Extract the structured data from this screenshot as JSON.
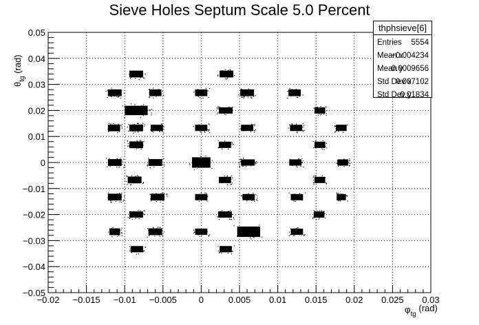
{
  "chart_data": {
    "type": "scatter",
    "title": "Sieve Holes Septum Scale 5.0 Percent",
    "xlabel": {
      "main": "φ",
      "sub": "tg",
      "unit": " (rad)"
    },
    "ylabel": {
      "main": "θ",
      "sub": "tg",
      "unit": " (rad)"
    },
    "xlim": [
      -0.02,
      0.03
    ],
    "ylim": [
      -0.05,
      0.05
    ],
    "x_ticks": [
      "−0.02",
      "−0.015",
      "−0.01",
      "−0.005",
      "0",
      "0.005",
      "0.01",
      "0.015",
      "0.02",
      "0.025",
      "0.03"
    ],
    "x_tick_values": [
      -0.02,
      -0.015,
      -0.01,
      -0.005,
      0,
      0.005,
      0.01,
      0.015,
      0.02,
      0.025,
      0.03
    ],
    "y_ticks": [
      "−0.05",
      "−0.04",
      "−0.03",
      "−0.02",
      "−0.01",
      "0",
      "0.01",
      "0.02",
      "0.03",
      "0.04",
      "0.05"
    ],
    "y_tick_values": [
      -0.05,
      -0.04,
      -0.03,
      -0.02,
      -0.01,
      0,
      0.01,
      0.02,
      0.03,
      0.04,
      0.05
    ],
    "grid": true,
    "grid_style": "dotted",
    "stats_box": {
      "name": "thphsieve[6]",
      "entries": [
        {
          "label": "Entries",
          "value": "5554"
        },
        {
          "label": "Mean x",
          "value": "−0.004234"
        },
        {
          "label": "Mean y",
          "value": "0.0009656"
        },
        {
          "label": "Std Dev x",
          "value": "0.007102"
        },
        {
          "label": "Std Dev y",
          "value": "0.01834"
        }
      ]
    },
    "clusters": [
      {
        "x": -0.0085,
        "y": 0.034,
        "w": 0.0009,
        "h": 0.0013
      },
      {
        "x": 0.0033,
        "y": 0.034,
        "w": 0.0009,
        "h": 0.0013
      },
      {
        "x": -0.0113,
        "y": 0.0268,
        "w": 0.0009,
        "h": 0.0013
      },
      {
        "x": -0.006,
        "y": 0.0268,
        "w": 0.0008,
        "h": 0.0013
      },
      {
        "x": 0.0,
        "y": 0.0268,
        "w": 0.0008,
        "h": 0.0013
      },
      {
        "x": 0.006,
        "y": 0.0268,
        "w": 0.0009,
        "h": 0.0013
      },
      {
        "x": 0.0122,
        "y": 0.0268,
        "w": 0.0008,
        "h": 0.0013
      },
      {
        "x": -0.0085,
        "y": 0.02,
        "w": 0.0015,
        "h": 0.0018
      },
      {
        "x": 0.0032,
        "y": 0.02,
        "w": 0.0009,
        "h": 0.0012
      },
      {
        "x": 0.0155,
        "y": 0.02,
        "w": 0.0007,
        "h": 0.0012
      },
      {
        "x": -0.0114,
        "y": 0.0133,
        "w": 0.0008,
        "h": 0.0013
      },
      {
        "x": -0.0085,
        "y": 0.0133,
        "w": 0.0009,
        "h": 0.0013
      },
      {
        "x": -0.0058,
        "y": 0.0133,
        "w": 0.0008,
        "h": 0.0012
      },
      {
        "x": 0.0,
        "y": 0.0133,
        "w": 0.0008,
        "h": 0.0012
      },
      {
        "x": 0.006,
        "y": 0.0133,
        "w": 0.0008,
        "h": 0.0012
      },
      {
        "x": 0.0124,
        "y": 0.0133,
        "w": 0.0008,
        "h": 0.0012
      },
      {
        "x": 0.0183,
        "y": 0.0133,
        "w": 0.0007,
        "h": 0.0012
      },
      {
        "x": -0.0085,
        "y": 0.0068,
        "w": 0.0009,
        "h": 0.0013
      },
      {
        "x": 0.0031,
        "y": 0.0068,
        "w": 0.0008,
        "h": 0.0012
      },
      {
        "x": 0.0155,
        "y": 0.0068,
        "w": 0.0007,
        "h": 0.0012
      },
      {
        "x": -0.0113,
        "y": 0.0,
        "w": 0.0009,
        "h": 0.0013
      },
      {
        "x": -0.006,
        "y": 0.0,
        "w": 0.0009,
        "h": 0.0013
      },
      {
        "x": 0.0,
        "y": 0.0,
        "w": 0.0012,
        "h": 0.002
      },
      {
        "x": 0.0061,
        "y": 0.0,
        "w": 0.0009,
        "h": 0.0012
      },
      {
        "x": 0.0123,
        "y": 0.0,
        "w": 0.0008,
        "h": 0.0012
      },
      {
        "x": 0.0185,
        "y": 0.0,
        "w": 0.0007,
        "h": 0.0012
      },
      {
        "x": -0.0087,
        "y": -0.0067,
        "w": 0.0009,
        "h": 0.0013
      },
      {
        "x": 0.0031,
        "y": -0.0067,
        "w": 0.0008,
        "h": 0.0012
      },
      {
        "x": 0.0155,
        "y": -0.0067,
        "w": 0.0007,
        "h": 0.0012
      },
      {
        "x": -0.0113,
        "y": -0.0133,
        "w": 0.0009,
        "h": 0.0013
      },
      {
        "x": -0.0057,
        "y": -0.0133,
        "w": 0.0009,
        "h": 0.0013
      },
      {
        "x": 0.0,
        "y": -0.0133,
        "w": 0.0008,
        "h": 0.0012
      },
      {
        "x": 0.0062,
        "y": -0.0133,
        "w": 0.0008,
        "h": 0.0012
      },
      {
        "x": 0.0125,
        "y": -0.0133,
        "w": 0.0008,
        "h": 0.0012
      },
      {
        "x": 0.0183,
        "y": -0.0133,
        "w": 0.0006,
        "h": 0.0012
      },
      {
        "x": -0.0085,
        "y": -0.02,
        "w": 0.0009,
        "h": 0.0012
      },
      {
        "x": 0.0031,
        "y": -0.02,
        "w": 0.0009,
        "h": 0.0012
      },
      {
        "x": 0.0154,
        "y": -0.02,
        "w": 0.0007,
        "h": 0.0012
      },
      {
        "x": -0.0113,
        "y": -0.0266,
        "w": 0.0007,
        "h": 0.0013
      },
      {
        "x": -0.006,
        "y": -0.0266,
        "w": 0.0009,
        "h": 0.0013
      },
      {
        "x": 0.0,
        "y": -0.0266,
        "w": 0.0008,
        "h": 0.0012
      },
      {
        "x": 0.0062,
        "y": -0.0266,
        "w": 0.0015,
        "h": 0.002
      },
      {
        "x": 0.0125,
        "y": -0.0266,
        "w": 0.0008,
        "h": 0.0012
      },
      {
        "x": -0.0084,
        "y": -0.0333,
        "w": 0.0008,
        "h": 0.0012
      },
      {
        "x": 0.0032,
        "y": -0.0333,
        "w": 0.0008,
        "h": 0.0012
      }
    ]
  }
}
